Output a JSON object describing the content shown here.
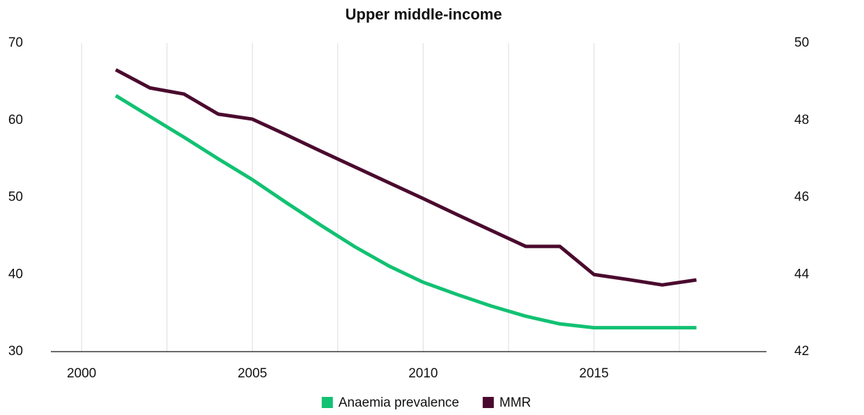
{
  "chart_data": {
    "type": "line",
    "title": "Upper middle-income",
    "x": [
      2001,
      2002,
      2003,
      2004,
      2005,
      2006,
      2007,
      2008,
      2009,
      2010,
      2011,
      2012,
      2013,
      2014,
      2015,
      2016,
      2017,
      2018
    ],
    "series": [
      {
        "name": "Anaemia prevalence",
        "color": "#12c172",
        "axis": "y",
        "values": [
          63.2,
          60.5,
          57.8,
          55.0,
          52.3,
          49.3,
          46.4,
          43.6,
          41.1,
          39.0,
          37.4,
          35.9,
          34.6,
          33.6,
          33.1,
          33.1,
          33.1,
          33.1
        ]
      },
      {
        "name": "MMR",
        "color": "#4a0a2e",
        "axis": "y2",
        "values": [
          49.31,
          48.84,
          48.68,
          48.16,
          48.03,
          47.62,
          47.2,
          46.79,
          46.38,
          45.97,
          45.55,
          45.14,
          44.73,
          44.73,
          44.0,
          43.87,
          43.73,
          43.86
        ]
      }
    ],
    "xlim": [
      1999.1,
      2020.05
    ],
    "xticks": [
      2000,
      2005,
      2010,
      2015
    ],
    "xgrid": [
      2000,
      2002.5,
      2005,
      2007.5,
      2010,
      2012.5,
      2015,
      2017.5
    ],
    "ylim": [
      30,
      70
    ],
    "yticks": [
      30,
      40,
      50,
      60,
      70
    ],
    "y2lim": [
      42,
      50
    ],
    "y2ticks": [
      42,
      44,
      46,
      48,
      50
    ],
    "grid": true,
    "legend": "bottom"
  }
}
